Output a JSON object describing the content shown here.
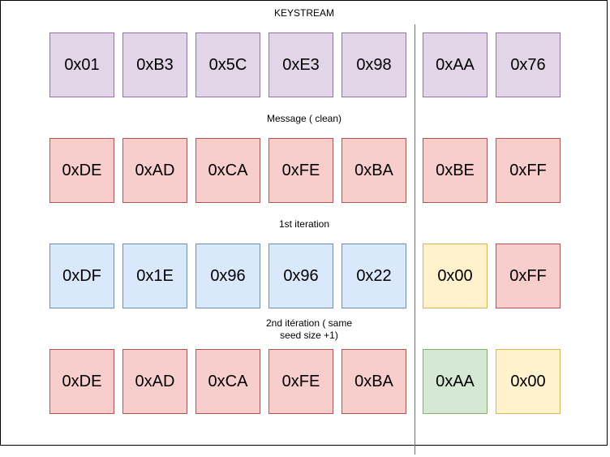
{
  "colors": {
    "purple": {
      "fill": "#e1d5e7",
      "stroke": "#9673a6"
    },
    "red": {
      "fill": "#f8cecc",
      "stroke": "#b85450"
    },
    "blue": {
      "fill": "#dae8fc",
      "stroke": "#6c8ebf"
    },
    "yellow": {
      "fill": "#fff2cc",
      "stroke": "#d6b656"
    },
    "green": {
      "fill": "#d5e8d4",
      "stroke": "#82b366"
    },
    "divider": "#b85450"
  },
  "labels": {
    "keystream": "KEYSTREAM",
    "message": "Message ( clean)",
    "iter1": "1st iteration",
    "iter2_line1": "2nd itération ( same",
    "iter2_line2": "seed size +1)"
  },
  "rows": [
    {
      "name": "keystream",
      "cells": [
        {
          "text": "0x01",
          "color": "purple"
        },
        {
          "text": "0xB3",
          "color": "purple"
        },
        {
          "text": "0x5C",
          "color": "purple"
        },
        {
          "text": "0xE3",
          "color": "purple"
        },
        {
          "text": "0x98",
          "color": "purple"
        },
        {
          "text": "0xAA",
          "color": "purple"
        },
        {
          "text": "0x76",
          "color": "purple"
        }
      ]
    },
    {
      "name": "message",
      "cells": [
        {
          "text": "0xDE",
          "color": "red"
        },
        {
          "text": "0xAD",
          "color": "red"
        },
        {
          "text": "0xCA",
          "color": "red"
        },
        {
          "text": "0xFE",
          "color": "red"
        },
        {
          "text": "0xBA",
          "color": "red"
        },
        {
          "text": "0xBE",
          "color": "red"
        },
        {
          "text": "0xFF",
          "color": "red"
        }
      ]
    },
    {
      "name": "iteration-1",
      "cells": [
        {
          "text": "0xDF",
          "color": "blue"
        },
        {
          "text": "0x1E",
          "color": "blue"
        },
        {
          "text": "0x96",
          "color": "blue"
        },
        {
          "text": "0x96",
          "color": "blue"
        },
        {
          "text": "0x22",
          "color": "blue"
        },
        {
          "text": "0x00",
          "color": "yellow"
        },
        {
          "text": "0xFF",
          "color": "red"
        }
      ]
    },
    {
      "name": "iteration-2",
      "cells": [
        {
          "text": "0xDE",
          "color": "red"
        },
        {
          "text": "0xAD",
          "color": "red"
        },
        {
          "text": "0xCA",
          "color": "red"
        },
        {
          "text": "0xFE",
          "color": "red"
        },
        {
          "text": "0xBA",
          "color": "red"
        },
        {
          "text": "0xAA",
          "color": "green"
        },
        {
          "text": "0x00",
          "color": "yellow"
        }
      ]
    }
  ]
}
